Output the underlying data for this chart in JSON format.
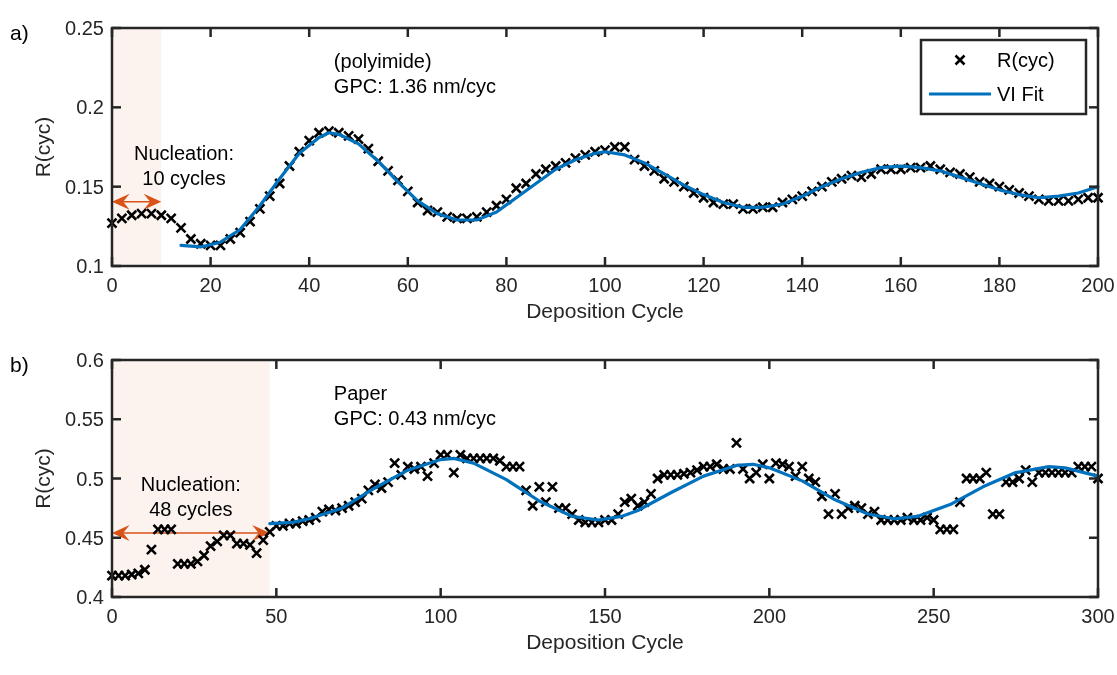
{
  "chart_data": [
    {
      "type": "scatter",
      "title": "a)",
      "xlabel": "Deposition Cycle",
      "ylabel": "R(cyc)",
      "xlim": [
        0,
        200
      ],
      "xticks": [
        0,
        20,
        40,
        60,
        80,
        100,
        120,
        140,
        160,
        180,
        200
      ],
      "ylim": [
        0.1,
        0.25
      ],
      "yticks": [
        0.1,
        0.15,
        0.2,
        0.25
      ],
      "legend": "top right",
      "grid": false,
      "annotations": [
        "(polyimide)\nGPC: 1.36 nm/cyc"
      ],
      "bands": [
        {
          "axis": "x",
          "from": 0,
          "to": 10,
          "label": "Nucleation:\n10 cycles",
          "color": "#d95319"
        }
      ],
      "series": [
        {
          "name": "R(cyc)",
          "type": "scatter",
          "marker": "cross",
          "color": "#000000",
          "x": [
            0,
            2,
            4,
            6,
            8,
            10,
            12,
            14,
            16,
            18,
            20,
            22,
            24,
            26,
            28,
            30,
            32,
            34,
            36,
            38,
            40,
            42,
            44,
            46,
            48,
            50,
            52,
            54,
            56,
            58,
            60,
            62,
            64,
            66,
            68,
            70,
            72,
            74,
            76,
            78,
            80,
            82,
            84,
            86,
            88,
            90,
            92,
            94,
            96,
            98,
            100,
            102,
            104,
            106,
            108,
            110,
            112,
            114,
            116,
            118,
            120,
            122,
            124,
            126,
            128,
            130,
            132,
            134,
            136,
            138,
            140,
            142,
            144,
            146,
            148,
            150,
            152,
            154,
            156,
            158,
            160,
            162,
            164,
            166,
            168,
            170,
            172,
            174,
            176,
            178,
            180,
            182,
            184,
            186,
            188,
            190,
            192,
            194,
            196,
            198,
            200
          ],
          "values": [
            0.127,
            0.13,
            0.132,
            0.133,
            0.133,
            0.132,
            0.13,
            0.124,
            0.117,
            0.114,
            0.113,
            0.113,
            0.117,
            0.121,
            0.128,
            0.136,
            0.144,
            0.152,
            0.163,
            0.172,
            0.179,
            0.184,
            0.185,
            0.184,
            0.182,
            0.18,
            0.174,
            0.166,
            0.16,
            0.154,
            0.147,
            0.14,
            0.135,
            0.134,
            0.131,
            0.13,
            0.13,
            0.131,
            0.134,
            0.138,
            0.142,
            0.149,
            0.152,
            0.158,
            0.161,
            0.163,
            0.165,
            0.168,
            0.17,
            0.172,
            0.173,
            0.175,
            0.175,
            0.167,
            0.163,
            0.16,
            0.155,
            0.153,
            0.15,
            0.146,
            0.143,
            0.14,
            0.139,
            0.139,
            0.136,
            0.136,
            0.137,
            0.137,
            0.14,
            0.142,
            0.144,
            0.147,
            0.15,
            0.153,
            0.155,
            0.157,
            0.156,
            0.158,
            0.161,
            0.161,
            0.161,
            0.162,
            0.162,
            0.163,
            0.161,
            0.159,
            0.158,
            0.156,
            0.153,
            0.152,
            0.15,
            0.148,
            0.146,
            0.144,
            0.142,
            0.141,
            0.141,
            0.141,
            0.142,
            0.143,
            0.143
          ]
        },
        {
          "name": "VI Fit",
          "type": "line",
          "marker": "none",
          "line_style": "solid",
          "color": "#0072bd",
          "x": [
            14,
            18,
            22,
            26,
            30,
            34,
            38,
            42,
            44,
            46,
            50,
            54,
            58,
            62,
            66,
            70,
            74,
            78,
            82,
            86,
            90,
            94,
            98,
            100,
            104,
            108,
            112,
            116,
            120,
            124,
            128,
            132,
            136,
            140,
            144,
            148,
            152,
            156,
            160,
            164,
            168,
            172,
            176,
            180,
            184,
            188,
            192,
            196,
            200
          ],
          "values": [
            0.113,
            0.112,
            0.115,
            0.123,
            0.138,
            0.155,
            0.171,
            0.181,
            0.184,
            0.183,
            0.177,
            0.166,
            0.153,
            0.141,
            0.133,
            0.129,
            0.129,
            0.134,
            0.143,
            0.152,
            0.161,
            0.167,
            0.171,
            0.172,
            0.17,
            0.165,
            0.158,
            0.151,
            0.145,
            0.14,
            0.137,
            0.137,
            0.139,
            0.144,
            0.15,
            0.155,
            0.159,
            0.162,
            0.163,
            0.162,
            0.16,
            0.156,
            0.152,
            0.148,
            0.145,
            0.143,
            0.144,
            0.146,
            0.15
          ]
        }
      ]
    },
    {
      "type": "scatter",
      "title": "b)",
      "xlabel": "Deposition Cycle",
      "ylabel": "R(cyc)",
      "xlim": [
        0,
        300
      ],
      "xticks": [
        0,
        50,
        100,
        150,
        200,
        250,
        300
      ],
      "ylim": [
        0.4,
        0.6
      ],
      "yticks": [
        0.4,
        0.45,
        0.5,
        0.55,
        0.6
      ],
      "grid": false,
      "annotations": [
        "Paper\nGPC: 0.43 nm/cyc"
      ],
      "bands": [
        {
          "axis": "x",
          "from": 0,
          "to": 48,
          "label": "Nucleation:\n48 cycles",
          "color": "#d95319"
        }
      ],
      "series": [
        {
          "type": "scatter",
          "marker": "cross",
          "color": "#000000",
          "x": [
            0,
            2,
            4,
            6,
            8,
            10,
            12,
            14,
            16,
            18,
            20,
            22,
            24,
            26,
            28,
            30,
            32,
            34,
            36,
            38,
            40,
            42,
            44,
            46,
            48,
            50,
            52,
            54,
            56,
            58,
            60,
            62,
            64,
            66,
            68,
            70,
            72,
            74,
            76,
            78,
            80,
            82,
            84,
            86,
            88,
            90,
            92,
            94,
            96,
            98,
            100,
            102,
            104,
            106,
            108,
            110,
            112,
            114,
            116,
            118,
            120,
            122,
            124,
            126,
            128,
            130,
            132,
            134,
            136,
            138,
            140,
            142,
            144,
            146,
            148,
            150,
            152,
            154,
            156,
            158,
            160,
            162,
            164,
            166,
            168,
            170,
            172,
            174,
            176,
            178,
            180,
            182,
            184,
            186,
            188,
            190,
            192,
            194,
            196,
            198,
            200,
            202,
            204,
            206,
            208,
            210,
            212,
            214,
            216,
            218,
            220,
            222,
            224,
            226,
            228,
            230,
            232,
            234,
            236,
            238,
            240,
            242,
            244,
            246,
            248,
            250,
            252,
            254,
            256,
            258,
            260,
            262,
            264,
            266,
            268,
            270,
            272,
            274,
            276,
            278,
            280,
            282,
            284,
            286,
            288,
            290,
            292,
            294,
            296,
            298,
            300
          ],
          "values": [
            0.418,
            0.418,
            0.418,
            0.419,
            0.42,
            0.423,
            0.44,
            0.457,
            0.457,
            0.457,
            0.428,
            0.428,
            0.428,
            0.43,
            0.435,
            0.443,
            0.447,
            0.452,
            0.452,
            0.445,
            0.445,
            0.444,
            0.437,
            0.448,
            0.455,
            0.46,
            0.46,
            0.462,
            0.462,
            0.464,
            0.465,
            0.467,
            0.472,
            0.474,
            0.473,
            0.475,
            0.477,
            0.48,
            0.483,
            0.49,
            0.495,
            0.492,
            0.497,
            0.513,
            0.503,
            0.51,
            0.508,
            0.51,
            0.502,
            0.513,
            0.52,
            0.52,
            0.505,
            0.52,
            0.517,
            0.517,
            0.517,
            0.517,
            0.517,
            0.515,
            0.51,
            0.51,
            0.51,
            0.49,
            0.477,
            0.493,
            0.48,
            0.493,
            0.475,
            0.475,
            0.47,
            0.465,
            0.463,
            0.463,
            0.463,
            0.465,
            0.465,
            0.47,
            0.48,
            0.483,
            0.477,
            0.48,
            0.487,
            0.5,
            0.503,
            0.503,
            0.503,
            0.504,
            0.505,
            0.507,
            0.51,
            0.51,
            0.512,
            0.508,
            0.508,
            0.53,
            0.508,
            0.5,
            0.505,
            0.512,
            0.5,
            0.513,
            0.512,
            0.51,
            0.502,
            0.51,
            0.5,
            0.497,
            0.485,
            0.47,
            0.487,
            0.47,
            0.475,
            0.477,
            0.475,
            0.47,
            0.472,
            0.465,
            0.465,
            0.465,
            0.465,
            0.467,
            0.465,
            0.465,
            0.467,
            0.465,
            0.457,
            0.457,
            0.457,
            0.48,
            0.5,
            0.5,
            0.5,
            0.505,
            0.47,
            0.47,
            0.497,
            0.497,
            0.5,
            0.507,
            0.497,
            0.505,
            0.505,
            0.505,
            0.505,
            0.505,
            0.505,
            0.51,
            0.51,
            0.51,
            0.5
          ]
        },
        {
          "type": "line",
          "marker": "none",
          "line_style": "solid",
          "color": "#0072bd",
          "x": [
            48,
            55,
            60,
            70,
            80,
            90,
            100,
            104,
            110,
            120,
            130,
            140,
            148,
            155,
            160,
            170,
            180,
            190,
            195,
            200,
            210,
            220,
            230,
            238,
            245,
            255,
            265,
            275,
            285,
            290,
            300
          ],
          "values": [
            0.462,
            0.463,
            0.466,
            0.475,
            0.492,
            0.507,
            0.516,
            0.517,
            0.513,
            0.499,
            0.481,
            0.468,
            0.465,
            0.468,
            0.473,
            0.488,
            0.502,
            0.511,
            0.512,
            0.509,
            0.498,
            0.482,
            0.47,
            0.466,
            0.468,
            0.478,
            0.493,
            0.505,
            0.51,
            0.509,
            0.502
          ]
        }
      ]
    }
  ]
}
